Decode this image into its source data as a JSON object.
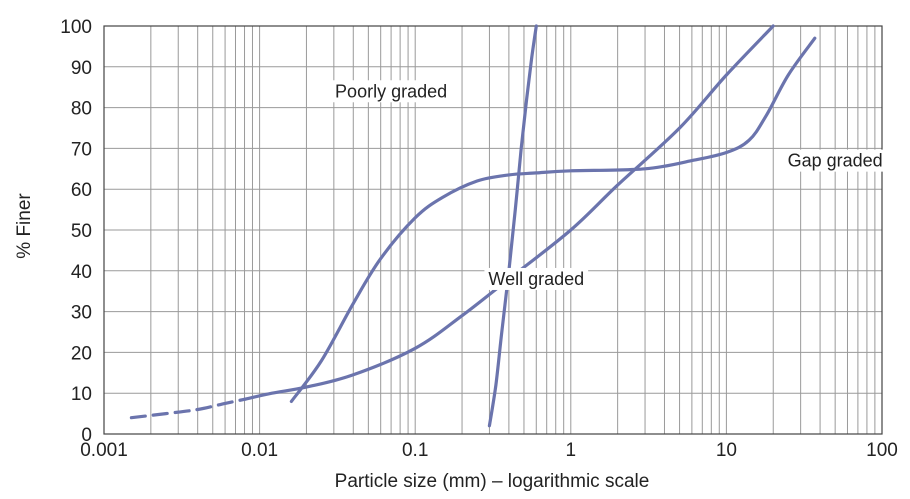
{
  "chart_data": {
    "type": "line",
    "xlabel": "Particle size (mm) – logarithmic scale",
    "ylabel": "% Finer",
    "xscale": "log",
    "xlim": [
      0.001,
      100
    ],
    "ylim": [
      0,
      100
    ],
    "grid": true,
    "line_color": "#6b74ad",
    "x_ticks": [
      {
        "value": 0.001,
        "label": "0.001"
      },
      {
        "value": 0.01,
        "label": "0.01"
      },
      {
        "value": 0.1,
        "label": "0.1"
      },
      {
        "value": 1,
        "label": "1"
      },
      {
        "value": 10,
        "label": "10"
      },
      {
        "value": 100,
        "label": "100"
      }
    ],
    "y_ticks": [
      {
        "value": 0,
        "label": "0"
      },
      {
        "value": 10,
        "label": "10"
      },
      {
        "value": 20,
        "label": "20"
      },
      {
        "value": 30,
        "label": "30"
      },
      {
        "value": 40,
        "label": "40"
      },
      {
        "value": 50,
        "label": "50"
      },
      {
        "value": 60,
        "label": "60"
      },
      {
        "value": 70,
        "label": "70"
      },
      {
        "value": 80,
        "label": "80"
      },
      {
        "value": 90,
        "label": "90"
      },
      {
        "value": 100,
        "label": "100"
      }
    ],
    "series": [
      {
        "name": "Poorly graded",
        "label_at": {
          "x": 0.07,
          "y": 84
        },
        "points": [
          [
            0.3,
            2
          ],
          [
            0.33,
            12
          ],
          [
            0.36,
            25
          ],
          [
            0.4,
            40
          ],
          [
            0.44,
            55
          ],
          [
            0.48,
            70
          ],
          [
            0.52,
            82
          ],
          [
            0.56,
            92
          ],
          [
            0.6,
            100
          ]
        ]
      },
      {
        "name": "Well graded",
        "label_at": {
          "x": 0.6,
          "y": 38
        },
        "dashed_until": 0.008,
        "points": [
          [
            0.0015,
            4
          ],
          [
            0.0025,
            5
          ],
          [
            0.004,
            6
          ],
          [
            0.006,
            7.5
          ],
          [
            0.008,
            8.5
          ],
          [
            0.012,
            10
          ],
          [
            0.02,
            11.5
          ],
          [
            0.04,
            14.5
          ],
          [
            0.1,
            21
          ],
          [
            0.2,
            29
          ],
          [
            0.4,
            38
          ],
          [
            1,
            50
          ],
          [
            2,
            61
          ],
          [
            5,
            75
          ],
          [
            10,
            88
          ],
          [
            20,
            100
          ]
        ]
      },
      {
        "name": "Gap graded",
        "label_at": {
          "x": 50,
          "y": 67
        },
        "points": [
          [
            0.016,
            8
          ],
          [
            0.025,
            18
          ],
          [
            0.04,
            32
          ],
          [
            0.06,
            43
          ],
          [
            0.1,
            53
          ],
          [
            0.15,
            58
          ],
          [
            0.25,
            62
          ],
          [
            0.4,
            63.5
          ],
          [
            0.6,
            64
          ],
          [
            1,
            64.5
          ],
          [
            3,
            65
          ],
          [
            6,
            67
          ],
          [
            10,
            69
          ],
          [
            14,
            72
          ],
          [
            18,
            78
          ],
          [
            25,
            88
          ],
          [
            37,
            97
          ]
        ]
      }
    ]
  }
}
